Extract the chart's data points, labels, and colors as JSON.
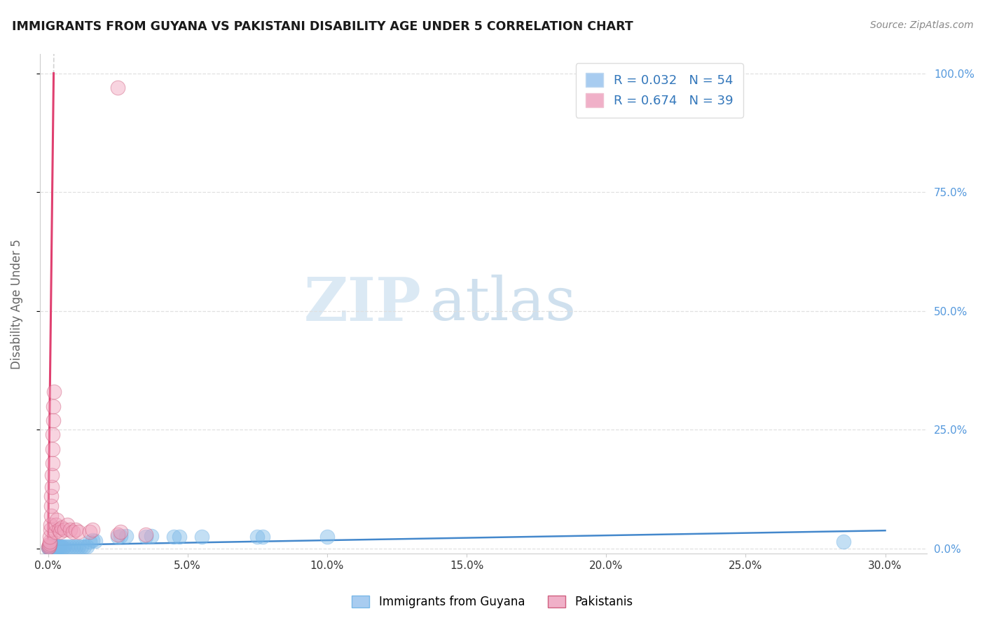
{
  "title": "IMMIGRANTS FROM GUYANA VS PAKISTANI DISABILITY AGE UNDER 5 CORRELATION CHART",
  "source": "Source: ZipAtlas.com",
  "ylabel": "Disability Age Under 5",
  "xlim": [
    0,
    30
  ],
  "ylim": [
    0,
    100
  ],
  "xtick_vals": [
    0,
    5,
    10,
    15,
    20,
    25,
    30
  ],
  "ytick_vals": [
    0,
    25,
    50,
    75,
    100
  ],
  "guyana_color": "#7ab8e8",
  "guyana_edge": "#7ab8e8",
  "pakistan_color": "#f0a0bc",
  "pakistan_edge": "#d06080",
  "trend_blue": "#4488cc",
  "trend_pink": "#e04070",
  "trend_gray": "#cccccc",
  "grid_color": "#e0e0e0",
  "background": "#ffffff",
  "title_color": "#1a1a1a",
  "source_color": "#888888",
  "tick_color_x": "#333333",
  "tick_color_y": "#5599dd",
  "guyana_points": [
    [
      0.05,
      0.3
    ],
    [
      0.07,
      0.4
    ],
    [
      0.08,
      0.5
    ],
    [
      0.09,
      0.3
    ],
    [
      0.1,
      0.5
    ],
    [
      0.11,
      0.4
    ],
    [
      0.12,
      0.3
    ],
    [
      0.13,
      0.5
    ],
    [
      0.14,
      0.4
    ],
    [
      0.15,
      0.3
    ],
    [
      0.16,
      0.5
    ],
    [
      0.17,
      0.4
    ],
    [
      0.18,
      0.3
    ],
    [
      0.19,
      0.5
    ],
    [
      0.2,
      0.4
    ],
    [
      0.22,
      0.3
    ],
    [
      0.25,
      0.5
    ],
    [
      0.28,
      0.4
    ],
    [
      0.3,
      0.5
    ],
    [
      0.35,
      0.4
    ],
    [
      0.02,
      0.2
    ],
    [
      0.03,
      0.3
    ],
    [
      0.04,
      0.2
    ],
    [
      0.06,
      0.3
    ],
    [
      1.5,
      1.5
    ],
    [
      1.6,
      1.8
    ],
    [
      1.7,
      1.6
    ],
    [
      2.5,
      2.5
    ],
    [
      2.6,
      2.7
    ],
    [
      2.8,
      2.6
    ],
    [
      3.5,
      2.5
    ],
    [
      3.7,
      2.6
    ],
    [
      4.5,
      2.5
    ],
    [
      4.7,
      2.5
    ],
    [
      5.5,
      2.5
    ],
    [
      7.5,
      2.5
    ],
    [
      7.7,
      2.5
    ],
    [
      10.0,
      2.5
    ],
    [
      28.5,
      1.5
    ],
    [
      0.4,
      0.4
    ],
    [
      0.45,
      0.5
    ],
    [
      0.5,
      0.4
    ],
    [
      0.55,
      0.3
    ],
    [
      0.6,
      0.5
    ],
    [
      0.7,
      0.4
    ],
    [
      0.8,
      0.4
    ],
    [
      0.9,
      0.5
    ],
    [
      1.0,
      0.4
    ],
    [
      1.1,
      0.5
    ],
    [
      1.2,
      0.4
    ],
    [
      1.3,
      0.5
    ],
    [
      1.4,
      0.4
    ]
  ],
  "pakistan_points": [
    [
      0.02,
      0.3
    ],
    [
      0.03,
      0.5
    ],
    [
      0.04,
      0.8
    ],
    [
      0.05,
      1.0
    ],
    [
      0.06,
      1.5
    ],
    [
      0.07,
      2.5
    ],
    [
      0.08,
      4.0
    ],
    [
      0.09,
      5.0
    ],
    [
      0.1,
      7.0
    ],
    [
      0.11,
      9.0
    ],
    [
      0.12,
      11.0
    ],
    [
      0.13,
      13.0
    ],
    [
      0.14,
      15.5
    ],
    [
      0.15,
      18.0
    ],
    [
      0.16,
      21.0
    ],
    [
      0.17,
      24.0
    ],
    [
      0.18,
      27.0
    ],
    [
      0.19,
      30.0
    ],
    [
      0.2,
      33.0
    ],
    [
      0.25,
      3.5
    ],
    [
      0.28,
      5.0
    ],
    [
      0.3,
      6.0
    ],
    [
      0.4,
      4.0
    ],
    [
      0.45,
      3.5
    ],
    [
      0.5,
      4.5
    ],
    [
      0.6,
      4.0
    ],
    [
      0.7,
      5.0
    ],
    [
      0.8,
      4.0
    ],
    [
      0.9,
      3.5
    ],
    [
      1.0,
      4.0
    ],
    [
      1.1,
      3.5
    ],
    [
      1.5,
      3.5
    ],
    [
      1.6,
      4.0
    ],
    [
      2.5,
      3.0
    ],
    [
      2.6,
      3.5
    ],
    [
      3.5,
      3.0
    ],
    [
      2.5,
      97.0
    ]
  ]
}
